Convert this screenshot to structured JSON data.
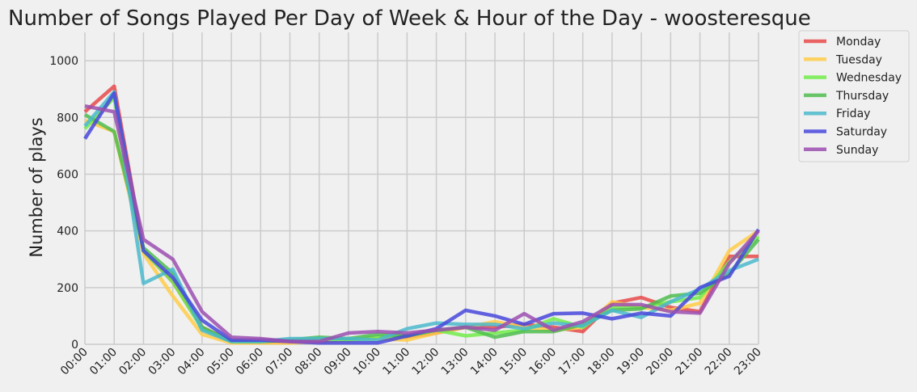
{
  "chart_data": {
    "type": "line",
    "title": "Number of Songs Played Per Day of Week & Hour of the Day - woosteresque",
    "xlabel": "",
    "ylabel": "Number of plays",
    "ylim": [
      0,
      1100
    ],
    "yticks": [
      0,
      200,
      400,
      600,
      800,
      1000
    ],
    "grid": true,
    "legend_placement": "outside-top-right",
    "categories": [
      "00:00",
      "01:00",
      "02:00",
      "03:00",
      "04:00",
      "05:00",
      "06:00",
      "07:00",
      "08:00",
      "09:00",
      "10:00",
      "11:00",
      "12:00",
      "13:00",
      "14:00",
      "15:00",
      "16:00",
      "17:00",
      "18:00",
      "19:00",
      "20:00",
      "21:00",
      "22:00",
      "23:00"
    ],
    "series": [
      {
        "name": "Monday",
        "color": "#e84a4a",
        "values": [
          820,
          910,
          330,
          220,
          60,
          10,
          8,
          8,
          10,
          15,
          20,
          25,
          40,
          60,
          60,
          70,
          60,
          45,
          145,
          165,
          130,
          115,
          310,
          310
        ]
      },
      {
        "name": "Tuesday",
        "color": "#ffcd48",
        "values": [
          790,
          750,
          320,
          170,
          35,
          5,
          5,
          5,
          10,
          15,
          20,
          15,
          40,
          60,
          80,
          60,
          50,
          60,
          150,
          130,
          120,
          145,
          330,
          400
        ]
      },
      {
        "name": "Wednesday",
        "color": "#72ec4a",
        "values": [
          760,
          870,
          330,
          220,
          55,
          10,
          10,
          15,
          20,
          15,
          25,
          30,
          50,
          30,
          40,
          50,
          90,
          60,
          130,
          130,
          150,
          165,
          290,
          380
        ]
      },
      {
        "name": "Thursday",
        "color": "#4fbd4f",
        "values": [
          810,
          750,
          340,
          250,
          60,
          10,
          10,
          15,
          25,
          20,
          35,
          30,
          50,
          60,
          25,
          45,
          45,
          70,
          120,
          125,
          170,
          180,
          250,
          370
        ]
      },
      {
        "name": "Friday",
        "color": "#4ab9cd",
        "values": [
          770,
          890,
          215,
          265,
          50,
          10,
          10,
          20,
          20,
          20,
          15,
          55,
          75,
          70,
          70,
          55,
          75,
          65,
          120,
          95,
          150,
          195,
          260,
          300
        ]
      },
      {
        "name": "Saturday",
        "color": "#4848dc",
        "values": [
          725,
          885,
          330,
          235,
          85,
          15,
          15,
          10,
          5,
          5,
          5,
          30,
          55,
          120,
          100,
          70,
          108,
          110,
          90,
          110,
          100,
          200,
          240,
          405
        ]
      },
      {
        "name": "Sunday",
        "color": "#9b4fb0",
        "values": [
          840,
          820,
          370,
          300,
          115,
          25,
          20,
          10,
          10,
          40,
          45,
          40,
          50,
          60,
          50,
          108,
          50,
          80,
          140,
          140,
          115,
          110,
          285,
          400
        ]
      }
    ]
  }
}
